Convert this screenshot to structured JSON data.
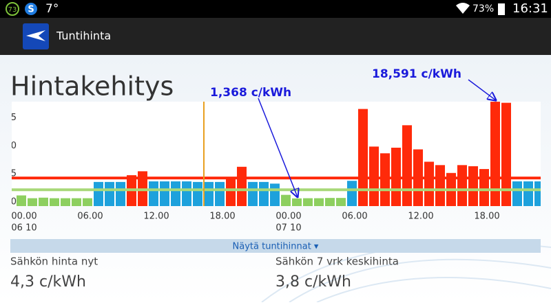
{
  "status_bar": {
    "badge": "73",
    "temperature": "7°",
    "battery": "73%",
    "time": "16:31"
  },
  "app_bar": {
    "title": "Tuntihinta"
  },
  "heading": "Hintakehitys",
  "chart_data": {
    "type": "bar",
    "categories": [
      "00.00",
      null,
      null,
      null,
      null,
      null,
      "06.00",
      null,
      null,
      null,
      null,
      null,
      "12.00",
      null,
      null,
      null,
      null,
      null,
      "18.00",
      null,
      null,
      null,
      null,
      null,
      "00.00",
      null,
      null,
      null,
      null,
      null,
      "06.00",
      null,
      null,
      null,
      null,
      null,
      "12.00",
      null,
      null,
      null,
      null,
      null,
      "18.00",
      null,
      null,
      null,
      null,
      null
    ],
    "sub_categories": [
      "06 10",
      null,
      null,
      null,
      null,
      null,
      null,
      null,
      null,
      null,
      null,
      null,
      null,
      null,
      null,
      null,
      null,
      null,
      null,
      null,
      null,
      null,
      null,
      null,
      "07 10",
      null,
      null,
      null,
      null,
      null,
      null,
      null,
      null,
      null,
      null,
      null,
      null,
      null,
      null,
      null,
      null,
      null,
      null,
      null,
      null,
      null,
      null,
      null
    ],
    "values": [
      1.9,
      1.4,
      1.5,
      1.4,
      1.4,
      1.4,
      1.4,
      4.3,
      4.3,
      4.3,
      5.5,
      6.2,
      4.4,
      4.4,
      4.4,
      4.4,
      4.3,
      4.3,
      4.3,
      5.0,
      7.0,
      4.3,
      4.3,
      4.0,
      2.0,
      1.368,
      1.4,
      1.4,
      1.45,
      1.45,
      4.5,
      17.3,
      10.6,
      9.4,
      10.4,
      14.4,
      10.1,
      7.9,
      7.3,
      5.9,
      7.3,
      7.1,
      6.6,
      18.591,
      18.4,
      4.4,
      4.4,
      4.4
    ],
    "colors": [
      "#8dcf5f",
      "#8dcf5f",
      "#8dcf5f",
      "#8dcf5f",
      "#8dcf5f",
      "#8dcf5f",
      "#8dcf5f",
      "#1da1dc",
      "#1da1dc",
      "#1da1dc",
      "#ff2a0a",
      "#ff2a0a",
      "#1da1dc",
      "#1da1dc",
      "#1da1dc",
      "#1da1dc",
      "#1da1dc",
      "#1da1dc",
      "#1da1dc",
      "#ff2a0a",
      "#ff2a0a",
      "#1da1dc",
      "#1da1dc",
      "#1da1dc",
      "#8dcf5f",
      "#8dcf5f",
      "#8dcf5f",
      "#8dcf5f",
      "#8dcf5f",
      "#8dcf5f",
      "#1da1dc",
      "#ff2a0a",
      "#ff2a0a",
      "#ff2a0a",
      "#ff2a0a",
      "#ff2a0a",
      "#ff2a0a",
      "#ff2a0a",
      "#ff2a0a",
      "#ff2a0a",
      "#ff2a0a",
      "#ff2a0a",
      "#ff2a0a",
      "#ff2a0a",
      "#ff2a0a",
      "#1da1dc",
      "#1da1dc",
      "#1da1dc"
    ],
    "ylim": [
      0,
      18.6
    ],
    "yticks": [
      0,
      5,
      10,
      15
    ],
    "reference_lines": [
      {
        "value": 5.0,
        "color": "#ff2a0a"
      },
      {
        "value": 2.9,
        "color": "#a8d878"
      }
    ],
    "now_index": 16.5,
    "now_color": "#e8a020",
    "annotations": [
      {
        "text": "1,368 c/kWh",
        "index": 25,
        "value": 1.368
      },
      {
        "text": "18,591 c/kWh",
        "index": 43,
        "value": 18.591
      }
    ]
  },
  "toggle": "Näytä tuntihinnat ▾",
  "stats": [
    {
      "label": "Sähkön hinta nyt",
      "value": "4,3 c/kWh"
    },
    {
      "label": "Sähkön 7 vrk keskihinta",
      "value": "3,8 c/kWh"
    }
  ]
}
